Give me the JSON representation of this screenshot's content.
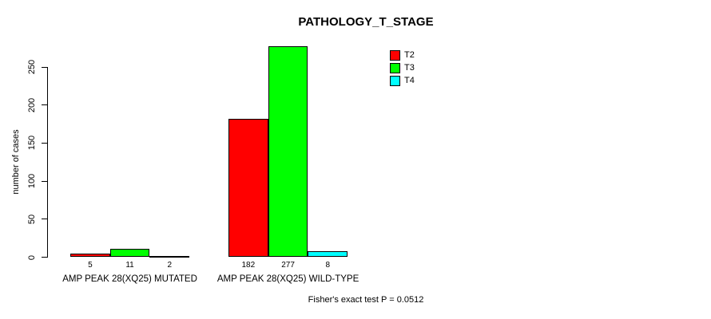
{
  "chart_data": {
    "type": "bar",
    "title": "PATHOLOGY_T_STAGE",
    "ylabel": "number of cases",
    "xlabel": "",
    "categories": [
      "AMP PEAK 28(XQ25) MUTATED",
      "AMP PEAK 28(XQ25) WILD-TYPE"
    ],
    "series": [
      {
        "name": "T2",
        "color": "#ff0000",
        "values": [
          5,
          182
        ]
      },
      {
        "name": "T3",
        "color": "#00ff00",
        "values": [
          11,
          277
        ]
      },
      {
        "name": "T4",
        "color": "#00ffff",
        "values": [
          2,
          8
        ]
      }
    ],
    "yticks": [
      0,
      50,
      100,
      150,
      200,
      250
    ],
    "ylim": [
      0,
      283
    ],
    "grid": false,
    "bar_value_labels_shown": true,
    "legend_position": "top-right",
    "annotation": "Fisher's exact test P = 0.0512"
  },
  "colors": {
    "axis": "#000000",
    "text": "#000000",
    "background": "#ffffff"
  }
}
